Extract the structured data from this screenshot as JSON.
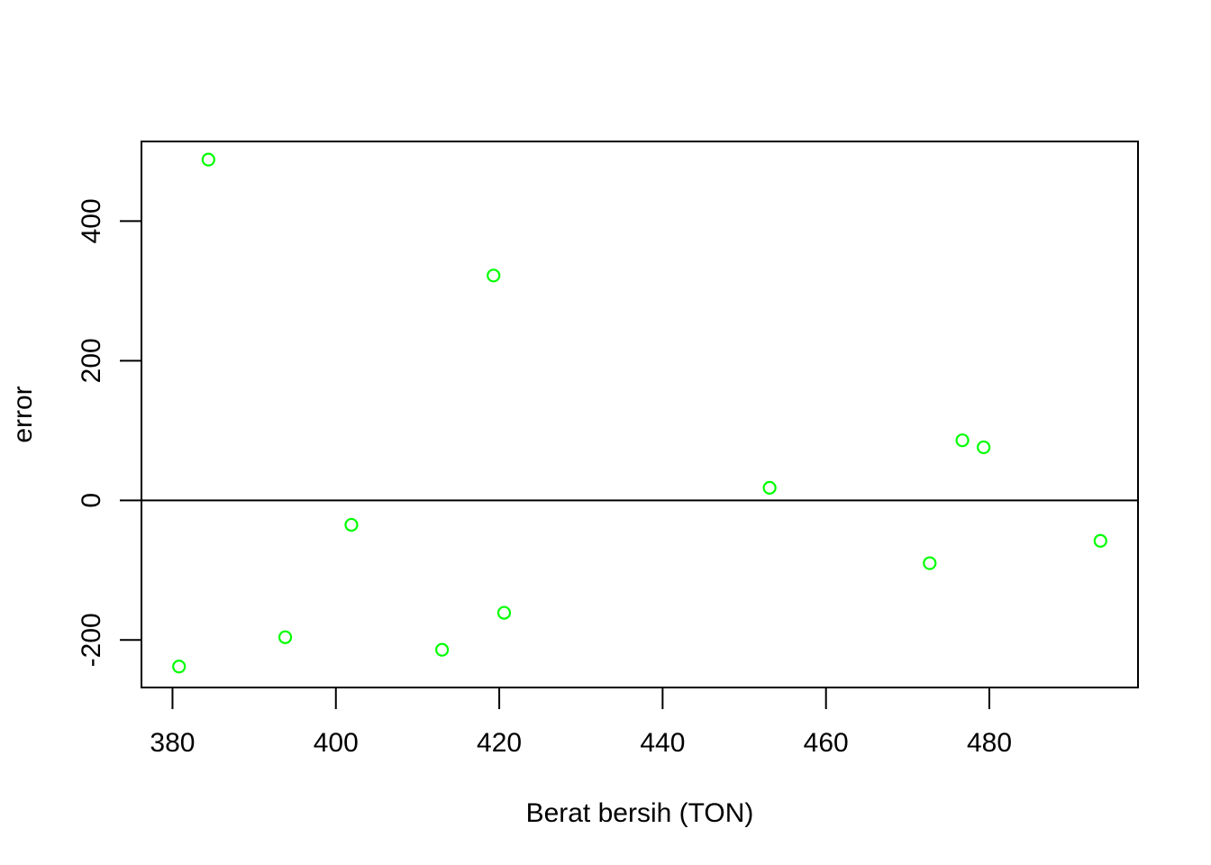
{
  "chart_data": {
    "type": "scatter",
    "title": "",
    "xlabel": "Berat bersih (TON)",
    "ylabel": "error",
    "xlim": [
      376.2,
      498.2
    ],
    "ylim": [
      -268,
      514
    ],
    "x_ticks": [
      380,
      400,
      420,
      440,
      460,
      480
    ],
    "x_tick_labels": [
      "380",
      "400",
      "420",
      "440",
      "460",
      "480"
    ],
    "y_ticks": [
      -200,
      0,
      200,
      400
    ],
    "y_tick_labels": [
      "-200",
      "0",
      "200",
      "400"
    ],
    "reference_line_y": 0,
    "grid": false,
    "marker_color": "#00ff00",
    "marker": "open-circle",
    "series": [
      {
        "points": [
          {
            "x": 380.8,
            "y": -238
          },
          {
            "x": 384.4,
            "y": 488
          },
          {
            "x": 393.8,
            "y": -196
          },
          {
            "x": 401.9,
            "y": -35
          },
          {
            "x": 413.0,
            "y": -214
          },
          {
            "x": 419.3,
            "y": 322
          },
          {
            "x": 420.6,
            "y": -161
          },
          {
            "x": 453.1,
            "y": 18
          },
          {
            "x": 472.7,
            "y": -90
          },
          {
            "x": 476.7,
            "y": 86
          },
          {
            "x": 479.3,
            "y": 76
          },
          {
            "x": 493.6,
            "y": -58
          }
        ]
      }
    ]
  }
}
